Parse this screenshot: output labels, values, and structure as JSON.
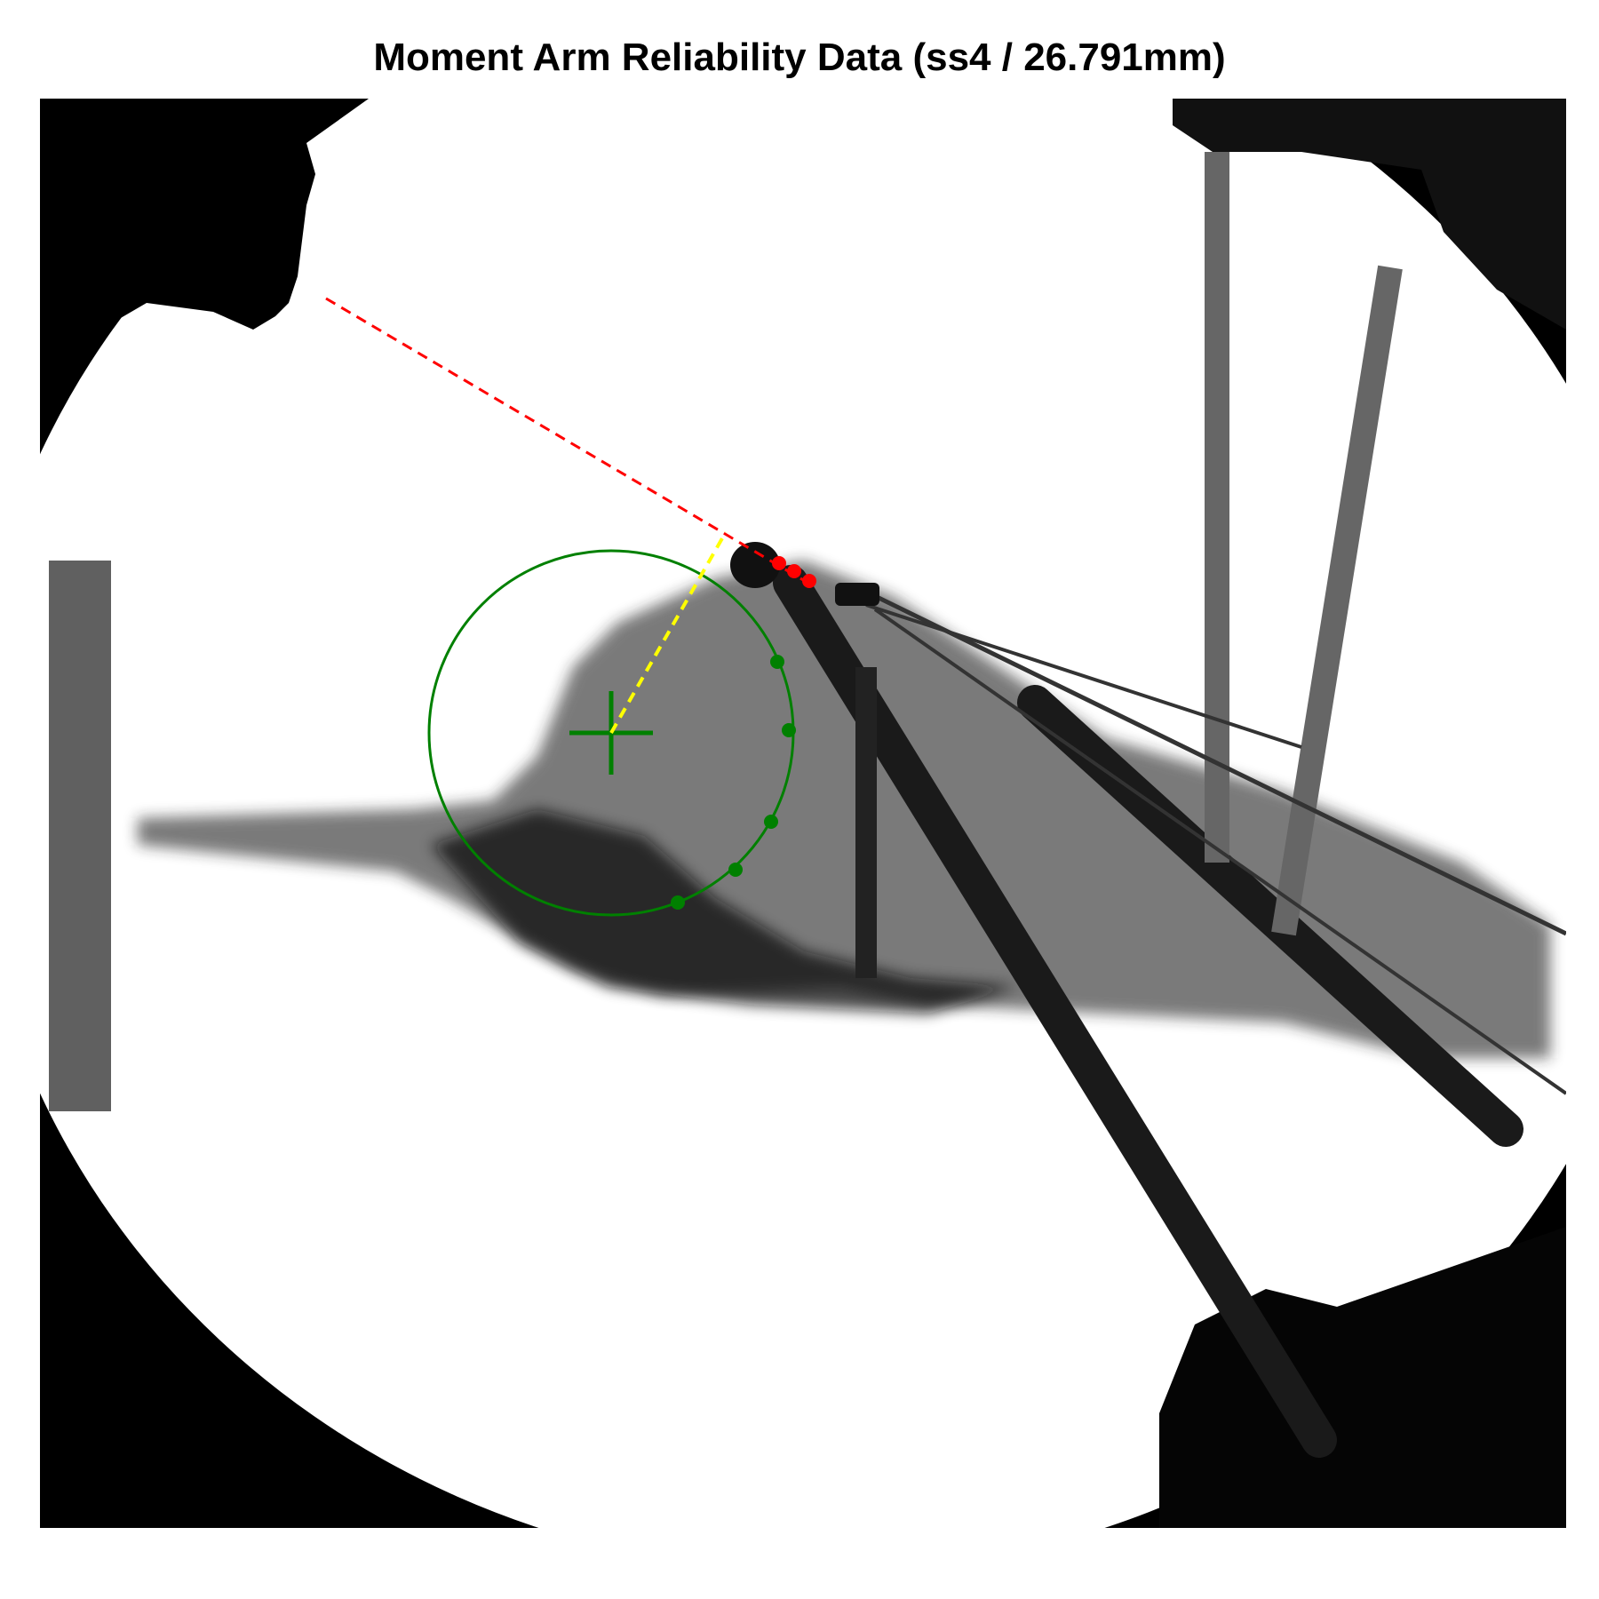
{
  "title": "Moment Arm Reliability Data (ss4 / 26.791mm)",
  "colors": {
    "circle": "#008000",
    "tendon_line": "#ff0000",
    "moment_arm_line": "#ffff00",
    "background": "#000000",
    "field": "#ffffff"
  }
}
